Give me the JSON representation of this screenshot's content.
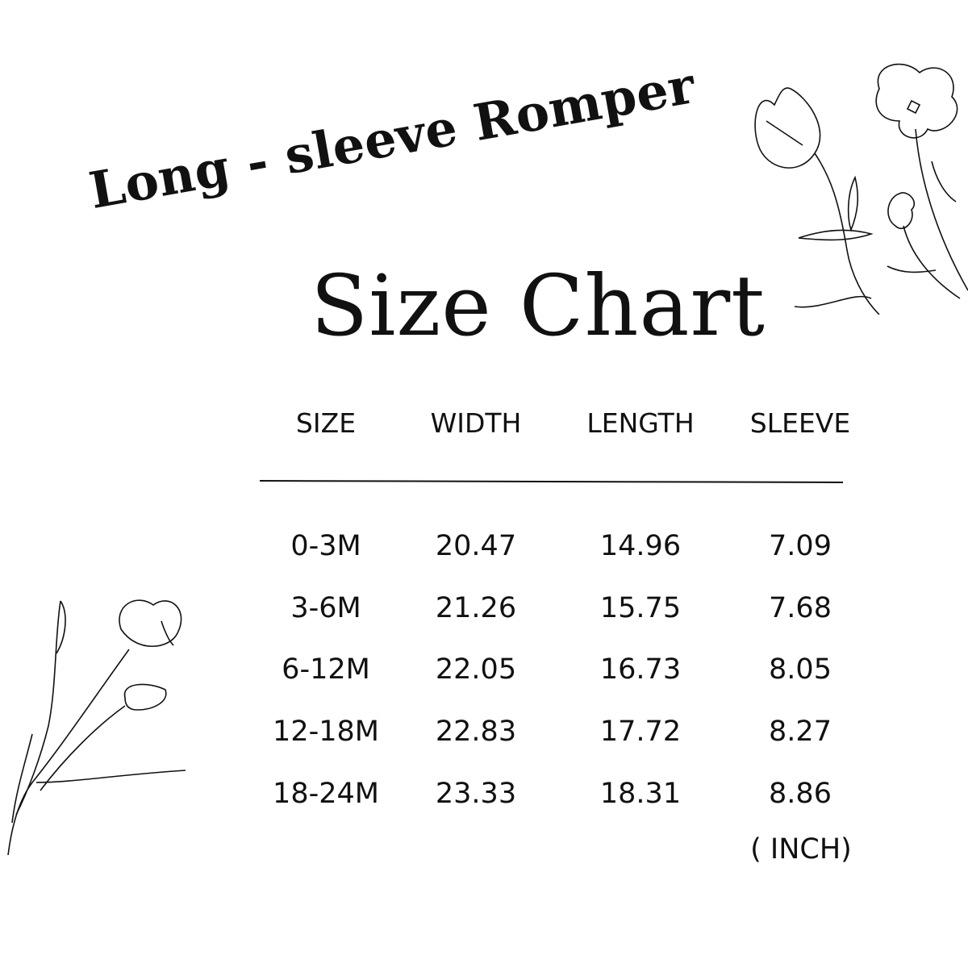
{
  "title": "Long - sleeve Romper",
  "subtitle": "Size Chart",
  "table": {
    "headers": [
      "SIZE",
      "WIDTH",
      "LENGTH",
      "SLEEVE"
    ],
    "rows": [
      [
        "0-3M",
        "20.47",
        "14.96",
        "7.09"
      ],
      [
        "3-6M",
        "21.26",
        "15.75",
        "7.68"
      ],
      [
        "6-12M",
        "22.05",
        "16.73",
        "8.05"
      ],
      [
        "12-18M",
        "22.83",
        "17.72",
        "8.27"
      ],
      [
        "18-24M",
        "23.33",
        "18.31",
        "8.86"
      ]
    ],
    "unit": "( INCH)"
  },
  "colors": {
    "text": "#111111",
    "background": "#ffffff"
  },
  "decorations": [
    "flower-line-art-top-right",
    "tulip-line-art-bottom-left"
  ]
}
